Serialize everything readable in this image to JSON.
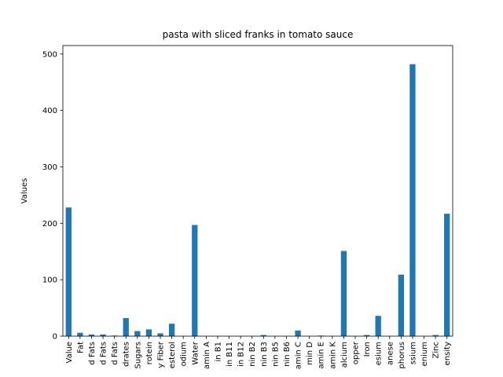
{
  "chart_data": {
    "type": "bar",
    "title": "pasta with sliced franks in tomato sauce",
    "xlabel": "",
    "ylabel": "Values",
    "ylim": [
      0,
      500
    ],
    "yticks": [
      0,
      100,
      200,
      300,
      400,
      500
    ],
    "grid": false,
    "legend": "none",
    "bar_color": "#1f77b4",
    "categories": [
      "Value",
      "Fat",
      "d Fats",
      "d Fats",
      "d Fats",
      "drates",
      "Sugars",
      "rotein",
      "y Fiber",
      "esterol",
      "odium",
      "Water",
      "amin A",
      "in B1",
      "in B11",
      "in B12",
      "nin B2",
      "nin B3",
      "nin B5",
      "nin B6",
      "amin C",
      "min D",
      "amin E",
      "amin K",
      "alcium",
      "opper",
      "Iron",
      "esium",
      "anese",
      "phorus",
      "ssium",
      "enium",
      "Zinc",
      "ensity"
    ],
    "values": [
      228,
      6,
      3,
      3,
      1,
      32,
      9,
      12,
      5,
      22,
      0,
      197,
      0,
      0,
      0,
      0,
      0,
      2,
      0,
      0,
      10,
      0,
      1,
      0,
      151,
      0,
      2,
      36,
      0,
      109,
      482,
      0,
      2,
      217
    ]
  }
}
